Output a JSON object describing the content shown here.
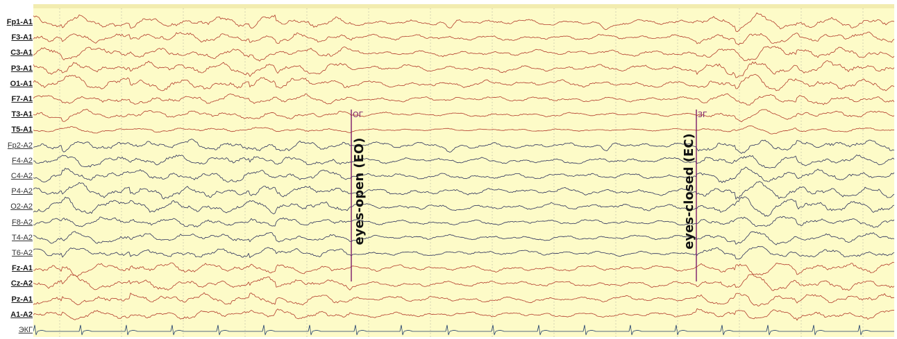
{
  "channels": [
    {
      "id": "ch0",
      "label": "Fp1-A1",
      "group": "left",
      "seed": 11,
      "amp": 7
    },
    {
      "id": "ch1",
      "label": "F3-A1",
      "group": "left",
      "seed": 23,
      "amp": 7
    },
    {
      "id": "ch2",
      "label": "C3-A1",
      "group": "left",
      "seed": 37,
      "amp": 7
    },
    {
      "id": "ch3",
      "label": "P3-A1",
      "group": "left",
      "seed": 41,
      "amp": 8
    },
    {
      "id": "ch4",
      "label": "O1-A1",
      "group": "left",
      "seed": 53,
      "amp": 8
    },
    {
      "id": "ch5",
      "label": "F7-A1",
      "group": "left",
      "seed": 67,
      "amp": 6
    },
    {
      "id": "ch6",
      "label": "T3-A1",
      "group": "left",
      "seed": 79,
      "amp": 5
    },
    {
      "id": "ch7",
      "label": "T5-A1",
      "group": "left",
      "seed": 83,
      "amp": 3
    },
    {
      "id": "ch8",
      "label": "Fp2-A2",
      "group": "right",
      "seed": 97,
      "amp": 7
    },
    {
      "id": "ch9",
      "label": "F4-A2",
      "group": "right",
      "seed": 101,
      "amp": 7
    },
    {
      "id": "ch10",
      "label": "C4-A2",
      "group": "right",
      "seed": 113,
      "amp": 7
    },
    {
      "id": "ch11",
      "label": "P4-A2",
      "group": "right",
      "seed": 127,
      "amp": 8
    },
    {
      "id": "ch12",
      "label": "O2-A2",
      "group": "right",
      "seed": 131,
      "amp": 8
    },
    {
      "id": "ch13",
      "label": "F8-A2",
      "group": "right",
      "seed": 149,
      "amp": 6
    },
    {
      "id": "ch14",
      "label": "T4-A2",
      "group": "right",
      "seed": 157,
      "amp": 6
    },
    {
      "id": "ch15",
      "label": "T6-A2",
      "group": "right",
      "seed": 163,
      "amp": 6
    },
    {
      "id": "ch16",
      "label": "Fz-A1",
      "group": "mid",
      "seed": 173,
      "amp": 7
    },
    {
      "id": "ch17",
      "label": "Cz-A2",
      "group": "mid",
      "seed": 181,
      "amp": 7
    },
    {
      "id": "ch18",
      "label": "Pz-A1",
      "group": "mid",
      "seed": 191,
      "amp": 7
    },
    {
      "id": "ch19",
      "label": "A1-A2",
      "group": "mid",
      "seed": 197,
      "amp": 6
    },
    {
      "id": "ch20",
      "label": "ЭКГ",
      "group": "ecg",
      "seed": 0,
      "amp": 0
    }
  ],
  "markers": [
    {
      "id": "eyes-open",
      "code": "ОГ",
      "annotation": "eyes-open (EO)"
    },
    {
      "id": "eyes-closed",
      "code": "ЗГ",
      "annotation": "eyes-closed (EC)"
    }
  ],
  "colors": {
    "background": "#fdfbc8",
    "top_band": "#f2ecb0",
    "grid": "#b9b9a6",
    "left_trace": "#b23a2a",
    "right_trace": "#2a2f5a",
    "mid_trace": "#b23a2a",
    "ecg_trace": "#1a3a6a",
    "marker_line": "#7a1a6a",
    "annotation_text": "#111111"
  }
}
